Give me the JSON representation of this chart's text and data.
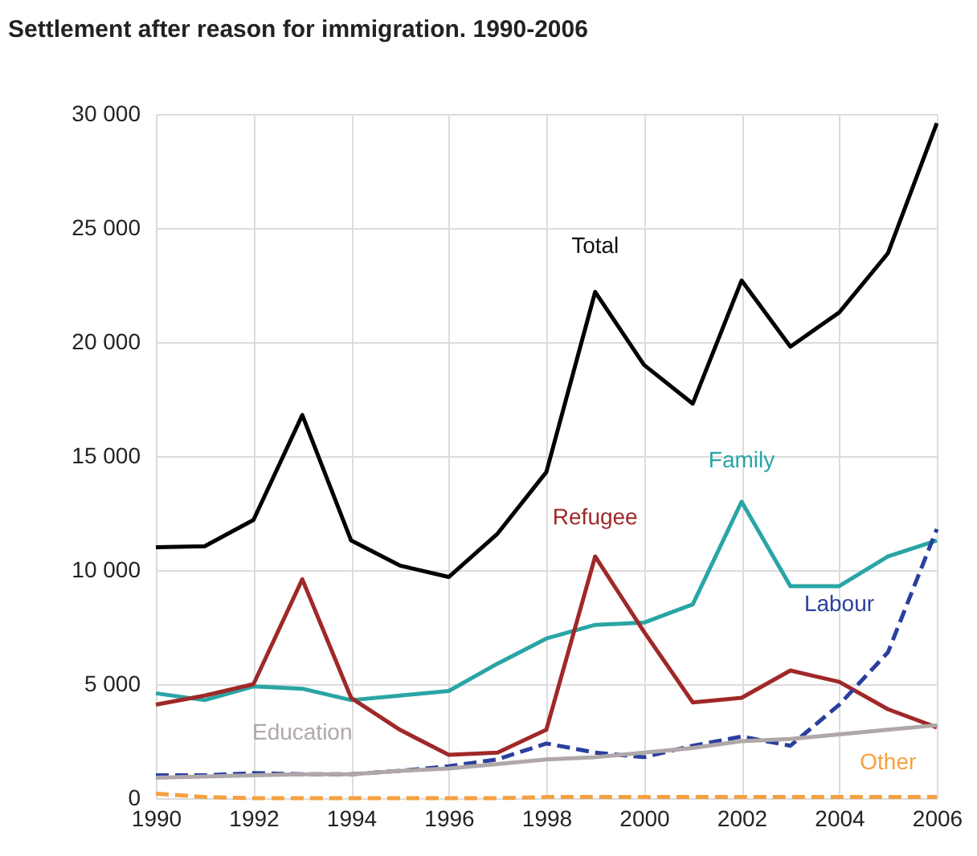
{
  "chart_data": {
    "type": "line",
    "title": "Settlement after reason for immigration. 1990-2006",
    "x": [
      1990,
      1991,
      1992,
      1993,
      1994,
      1995,
      1996,
      1997,
      1998,
      1999,
      2000,
      2001,
      2002,
      2003,
      2004,
      2005,
      2006
    ],
    "series": [
      {
        "name": "Total",
        "color": "#000000",
        "line_style": "solid",
        "values": [
          11000,
          11050,
          12200,
          16800,
          11300,
          10200,
          9700,
          11600,
          14300,
          22200,
          19000,
          17300,
          22700,
          19800,
          21300,
          23900,
          29600
        ]
      },
      {
        "name": "Family",
        "color": "#2aa5a5",
        "line_style": "solid",
        "values": [
          4600,
          4300,
          4900,
          4800,
          4300,
          4500,
          4700,
          5900,
          7000,
          7600,
          7700,
          8500,
          13000,
          9300,
          9300,
          10600,
          11300
        ]
      },
      {
        "name": "Refugee",
        "color": "#a02828",
        "line_style": "solid",
        "values": [
          4100,
          4500,
          5000,
          9600,
          4400,
          3000,
          1900,
          2000,
          3000,
          10600,
          7300,
          4200,
          4400,
          5600,
          5100,
          3900,
          3100
        ]
      },
      {
        "name": "Labour",
        "color": "#2b3f9e",
        "line_style": "dashed",
        "values": [
          1000,
          1000,
          1100,
          1050,
          1050,
          1200,
          1400,
          1700,
          2400,
          2000,
          1800,
          2300,
          2700,
          2300,
          4100,
          6400,
          11800
        ]
      },
      {
        "name": "Education",
        "color": "#b0a8a8",
        "line_style": "solid",
        "values": [
          900,
          950,
          1000,
          1050,
          1050,
          1200,
          1300,
          1500,
          1700,
          1800,
          2000,
          2200,
          2500,
          2600,
          2800,
          3000,
          3200
        ]
      },
      {
        "name": "Other",
        "color": "#f5a040",
        "line_style": "dashed",
        "values": [
          200,
          50,
          0,
          0,
          0,
          0,
          0,
          0,
          50,
          50,
          50,
          50,
          50,
          50,
          50,
          50,
          50
        ]
      }
    ],
    "xlim": [
      1990,
      2006
    ],
    "xticks": [
      1990,
      1992,
      1994,
      1996,
      1998,
      2000,
      2002,
      2004,
      2006
    ],
    "ylim": [
      0,
      30000
    ],
    "yticks": [
      0,
      {
        "value": 5000,
        "label": "5 000"
      },
      {
        "value": 10000,
        "label": "10 000"
      },
      {
        "value": 15000,
        "label": "15 000"
      },
      {
        "value": 20000,
        "label": "20 000"
      },
      {
        "value": 25000,
        "label": "25 000"
      },
      {
        "value": 30000,
        "label": "30 000"
      }
    ],
    "grid": true,
    "legend": false,
    "marker": "none"
  }
}
